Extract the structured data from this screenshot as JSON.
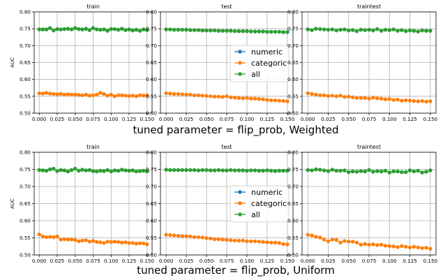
{
  "colors": {
    "numeric": "#1f77b4",
    "categoric": "#ff7f0e",
    "all": "#2ca02c",
    "grid": "#b0b0b0",
    "axis": "#000000"
  },
  "rows": [
    {
      "suptitle": "tuned parameter = flip_prob, Weighted"
    },
    {
      "suptitle": "tuned parameter = flip_prob, Uniform"
    }
  ],
  "chart_data": [
    {
      "type": "line",
      "title": "train",
      "xlabel": "",
      "ylabel": "AUC",
      "xlim": [
        -0.007,
        0.157
      ],
      "ylim": [
        0.5,
        0.8
      ],
      "xticks": [
        "0.000",
        "0.025",
        "0.050",
        "0.075",
        "0.100",
        "0.125",
        "0.150"
      ],
      "yticks": [
        "0.50",
        "0.55",
        "0.60",
        "0.65",
        "0.70",
        "0.75",
        "0.80"
      ],
      "grid": true,
      "legend": null,
      "x": [
        0.0,
        0.005,
        0.01,
        0.015,
        0.02,
        0.025,
        0.03,
        0.035,
        0.04,
        0.045,
        0.05,
        0.055,
        0.06,
        0.065,
        0.07,
        0.075,
        0.08,
        0.085,
        0.09,
        0.095,
        0.1,
        0.105,
        0.11,
        0.115,
        0.12,
        0.125,
        0.13,
        0.135,
        0.14,
        0.145,
        0.15
      ],
      "series": [
        {
          "name": "numeric",
          "values": [
            0.748,
            0.748,
            0.748,
            0.752,
            0.745,
            0.749,
            0.748,
            0.749,
            0.75,
            0.748,
            0.752,
            0.749,
            0.748,
            0.75,
            0.746,
            0.752,
            0.748,
            0.747,
            0.748,
            0.744,
            0.749,
            0.749,
            0.747,
            0.75,
            0.746,
            0.748,
            0.745,
            0.747,
            0.744,
            0.748,
            0.746
          ]
        },
        {
          "name": "categoric",
          "values": [
            0.559,
            0.558,
            0.56,
            0.558,
            0.557,
            0.556,
            0.557,
            0.555,
            0.556,
            0.555,
            0.555,
            0.554,
            0.553,
            0.555,
            0.552,
            0.553,
            0.555,
            0.56,
            0.557,
            0.552,
            0.555,
            0.55,
            0.553,
            0.553,
            0.552,
            0.551,
            0.552,
            0.55,
            0.553,
            0.552,
            0.553
          ]
        },
        {
          "name": "all",
          "values": [
            0.748,
            0.748,
            0.748,
            0.752,
            0.745,
            0.749,
            0.748,
            0.749,
            0.75,
            0.748,
            0.752,
            0.749,
            0.748,
            0.75,
            0.746,
            0.752,
            0.748,
            0.747,
            0.748,
            0.744,
            0.749,
            0.749,
            0.747,
            0.75,
            0.746,
            0.748,
            0.745,
            0.747,
            0.744,
            0.748,
            0.746
          ]
        }
      ]
    },
    {
      "type": "line",
      "title": "test",
      "xlabel": "",
      "ylabel": "",
      "xlim": [
        -0.007,
        0.157
      ],
      "ylim": [
        0.5,
        0.8
      ],
      "xticks": [
        "0.000",
        "0.025",
        "0.050",
        "0.075",
        "0.100",
        "0.125",
        "0.150"
      ],
      "yticks": [
        "0.50",
        "0.55",
        "0.60",
        "0.65",
        "0.70",
        "0.75",
        "0.80"
      ],
      "grid": true,
      "legend": "center-right",
      "x": [
        0.0,
        0.005,
        0.01,
        0.015,
        0.02,
        0.025,
        0.03,
        0.035,
        0.04,
        0.045,
        0.05,
        0.055,
        0.06,
        0.065,
        0.07,
        0.075,
        0.08,
        0.085,
        0.09,
        0.095,
        0.1,
        0.105,
        0.11,
        0.115,
        0.12,
        0.125,
        0.13,
        0.135,
        0.14,
        0.145,
        0.15
      ],
      "series": [
        {
          "name": "numeric",
          "values": [
            0.748,
            0.748,
            0.747,
            0.747,
            0.747,
            0.747,
            0.746,
            0.746,
            0.746,
            0.745,
            0.745,
            0.745,
            0.745,
            0.744,
            0.744,
            0.744,
            0.744,
            0.743,
            0.743,
            0.743,
            0.743,
            0.742,
            0.742,
            0.742,
            0.742,
            0.741,
            0.741,
            0.741,
            0.741,
            0.74,
            0.74
          ]
        },
        {
          "name": "categoric",
          "values": [
            0.559,
            0.558,
            0.557,
            0.557,
            0.556,
            0.555,
            0.555,
            0.553,
            0.553,
            0.552,
            0.551,
            0.55,
            0.549,
            0.549,
            0.548,
            0.55,
            0.547,
            0.546,
            0.545,
            0.544,
            0.545,
            0.543,
            0.543,
            0.542,
            0.541,
            0.539,
            0.538,
            0.538,
            0.537,
            0.536,
            0.535
          ]
        },
        {
          "name": "all",
          "values": [
            0.748,
            0.748,
            0.747,
            0.747,
            0.747,
            0.747,
            0.746,
            0.746,
            0.746,
            0.745,
            0.745,
            0.745,
            0.745,
            0.744,
            0.744,
            0.744,
            0.744,
            0.743,
            0.743,
            0.743,
            0.743,
            0.742,
            0.742,
            0.742,
            0.742,
            0.741,
            0.741,
            0.741,
            0.741,
            0.74,
            0.74
          ]
        }
      ]
    },
    {
      "type": "line",
      "title": "traintest",
      "xlabel": "",
      "ylabel": "",
      "xlim": [
        -0.007,
        0.157
      ],
      "ylim": [
        0.5,
        0.8
      ],
      "xticks": [
        "0.000",
        "0.025",
        "0.050",
        "0.075",
        "0.100",
        "0.125",
        "0.150"
      ],
      "yticks": [
        "0.50",
        "0.55",
        "0.60",
        "0.65",
        "0.70",
        "0.75",
        "0.80"
      ],
      "grid": true,
      "legend": null,
      "x": [
        0.0,
        0.005,
        0.01,
        0.015,
        0.02,
        0.025,
        0.03,
        0.035,
        0.04,
        0.045,
        0.05,
        0.055,
        0.06,
        0.065,
        0.07,
        0.075,
        0.08,
        0.085,
        0.09,
        0.095,
        0.1,
        0.105,
        0.11,
        0.115,
        0.12,
        0.125,
        0.13,
        0.135,
        0.14,
        0.145,
        0.15
      ],
      "series": [
        {
          "name": "numeric",
          "values": [
            0.748,
            0.746,
            0.75,
            0.749,
            0.748,
            0.747,
            0.748,
            0.745,
            0.747,
            0.748,
            0.745,
            0.746,
            0.743,
            0.747,
            0.746,
            0.747,
            0.745,
            0.749,
            0.744,
            0.747,
            0.746,
            0.748,
            0.744,
            0.746,
            0.743,
            0.745,
            0.744,
            0.742,
            0.745,
            0.744,
            0.744
          ]
        },
        {
          "name": "categoric",
          "values": [
            0.559,
            0.557,
            0.555,
            0.553,
            0.553,
            0.551,
            0.552,
            0.55,
            0.552,
            0.548,
            0.549,
            0.547,
            0.545,
            0.545,
            0.545,
            0.543,
            0.546,
            0.544,
            0.543,
            0.541,
            0.542,
            0.539,
            0.54,
            0.537,
            0.538,
            0.537,
            0.536,
            0.535,
            0.536,
            0.534,
            0.535
          ]
        },
        {
          "name": "all",
          "values": [
            0.748,
            0.746,
            0.75,
            0.749,
            0.748,
            0.747,
            0.748,
            0.745,
            0.747,
            0.748,
            0.745,
            0.746,
            0.743,
            0.747,
            0.746,
            0.747,
            0.745,
            0.749,
            0.744,
            0.747,
            0.746,
            0.748,
            0.744,
            0.746,
            0.743,
            0.745,
            0.744,
            0.742,
            0.745,
            0.744,
            0.744
          ]
        }
      ]
    },
    {
      "type": "line",
      "title": "train",
      "xlabel": "",
      "ylabel": "AUC",
      "xlim": [
        -0.007,
        0.157
      ],
      "ylim": [
        0.5,
        0.8
      ],
      "xticks": [
        "0.000",
        "0.025",
        "0.050",
        "0.075",
        "0.100",
        "0.125",
        "0.150"
      ],
      "yticks": [
        "0.50",
        "0.55",
        "0.60",
        "0.65",
        "0.70",
        "0.75",
        "0.80"
      ],
      "grid": true,
      "legend": null,
      "x": [
        0.0,
        0.005,
        0.01,
        0.015,
        0.02,
        0.025,
        0.03,
        0.035,
        0.04,
        0.045,
        0.05,
        0.055,
        0.06,
        0.065,
        0.07,
        0.075,
        0.08,
        0.085,
        0.09,
        0.095,
        0.1,
        0.105,
        0.11,
        0.115,
        0.12,
        0.125,
        0.13,
        0.135,
        0.14,
        0.145,
        0.15
      ],
      "series": [
        {
          "name": "numeric",
          "values": [
            0.748,
            0.747,
            0.746,
            0.75,
            0.752,
            0.745,
            0.748,
            0.747,
            0.744,
            0.748,
            0.752,
            0.746,
            0.749,
            0.747,
            0.748,
            0.745,
            0.744,
            0.746,
            0.745,
            0.748,
            0.744,
            0.747,
            0.746,
            0.749,
            0.747,
            0.746,
            0.747,
            0.744,
            0.745,
            0.746,
            0.744
          ]
        },
        {
          "name": "categoric",
          "values": [
            0.56,
            0.554,
            0.552,
            0.553,
            0.552,
            0.554,
            0.545,
            0.546,
            0.545,
            0.545,
            0.544,
            0.54,
            0.542,
            0.543,
            0.539,
            0.541,
            0.538,
            0.537,
            0.535,
            0.539,
            0.538,
            0.539,
            0.538,
            0.536,
            0.537,
            0.535,
            0.535,
            0.533,
            0.534,
            0.534,
            0.531
          ]
        },
        {
          "name": "all",
          "values": [
            0.748,
            0.747,
            0.746,
            0.75,
            0.752,
            0.745,
            0.748,
            0.747,
            0.744,
            0.748,
            0.752,
            0.746,
            0.749,
            0.747,
            0.748,
            0.745,
            0.744,
            0.746,
            0.745,
            0.748,
            0.744,
            0.747,
            0.746,
            0.749,
            0.747,
            0.746,
            0.747,
            0.744,
            0.745,
            0.746,
            0.744
          ]
        }
      ]
    },
    {
      "type": "line",
      "title": "test",
      "xlabel": "",
      "ylabel": "",
      "xlim": [
        -0.007,
        0.157
      ],
      "ylim": [
        0.5,
        0.8
      ],
      "xticks": [
        "0.000",
        "0.025",
        "0.050",
        "0.075",
        "0.100",
        "0.125",
        "0.150"
      ],
      "yticks": [
        "0.50",
        "0.55",
        "0.60",
        "0.65",
        "0.70",
        "0.75",
        "0.80"
      ],
      "grid": true,
      "legend": "center-right",
      "x": [
        0.0,
        0.005,
        0.01,
        0.015,
        0.02,
        0.025,
        0.03,
        0.035,
        0.04,
        0.045,
        0.05,
        0.055,
        0.06,
        0.065,
        0.07,
        0.075,
        0.08,
        0.085,
        0.09,
        0.095,
        0.1,
        0.105,
        0.11,
        0.115,
        0.12,
        0.125,
        0.13,
        0.135,
        0.14,
        0.145,
        0.15
      ],
      "series": [
        {
          "name": "numeric",
          "values": [
            0.749,
            0.748,
            0.748,
            0.748,
            0.748,
            0.748,
            0.748,
            0.748,
            0.747,
            0.748,
            0.748,
            0.747,
            0.747,
            0.748,
            0.747,
            0.747,
            0.748,
            0.747,
            0.747,
            0.747,
            0.746,
            0.747,
            0.747,
            0.746,
            0.746,
            0.747,
            0.746,
            0.745,
            0.746,
            0.746,
            0.746
          ]
        },
        {
          "name": "categoric",
          "values": [
            0.559,
            0.558,
            0.557,
            0.556,
            0.555,
            0.555,
            0.554,
            0.552,
            0.552,
            0.551,
            0.549,
            0.548,
            0.546,
            0.546,
            0.545,
            0.544,
            0.543,
            0.542,
            0.542,
            0.542,
            0.54,
            0.54,
            0.54,
            0.539,
            0.538,
            0.537,
            0.536,
            0.536,
            0.535,
            0.532,
            0.531
          ]
        },
        {
          "name": "all",
          "values": [
            0.749,
            0.748,
            0.748,
            0.748,
            0.748,
            0.748,
            0.748,
            0.748,
            0.747,
            0.748,
            0.748,
            0.747,
            0.747,
            0.748,
            0.747,
            0.747,
            0.748,
            0.747,
            0.747,
            0.747,
            0.746,
            0.747,
            0.747,
            0.746,
            0.746,
            0.747,
            0.746,
            0.745,
            0.746,
            0.746,
            0.746
          ]
        }
      ]
    },
    {
      "type": "line",
      "title": "traintest",
      "xlabel": "",
      "ylabel": "",
      "xlim": [
        -0.007,
        0.157
      ],
      "ylim": [
        0.5,
        0.8
      ],
      "xticks": [
        "0.000",
        "0.025",
        "0.050",
        "0.075",
        "0.100",
        "0.125",
        "0.150"
      ],
      "yticks": [
        "0.50",
        "0.55",
        "0.60",
        "0.65",
        "0.70",
        "0.75",
        "0.80"
      ],
      "grid": true,
      "legend": null,
      "x": [
        0.0,
        0.005,
        0.01,
        0.015,
        0.02,
        0.025,
        0.03,
        0.035,
        0.04,
        0.045,
        0.05,
        0.055,
        0.06,
        0.065,
        0.07,
        0.075,
        0.08,
        0.085,
        0.09,
        0.095,
        0.1,
        0.105,
        0.11,
        0.115,
        0.12,
        0.125,
        0.13,
        0.135,
        0.14,
        0.145,
        0.15
      ],
      "series": [
        {
          "name": "numeric",
          "values": [
            0.748,
            0.747,
            0.75,
            0.749,
            0.747,
            0.745,
            0.749,
            0.746,
            0.746,
            0.747,
            0.742,
            0.744,
            0.743,
            0.745,
            0.744,
            0.748,
            0.743,
            0.745,
            0.744,
            0.746,
            0.741,
            0.744,
            0.744,
            0.742,
            0.742,
            0.747,
            0.744,
            0.746,
            0.741,
            0.743,
            0.747
          ]
        },
        {
          "name": "categoric",
          "values": [
            0.559,
            0.557,
            0.553,
            0.551,
            0.545,
            0.54,
            0.545,
            0.544,
            0.536,
            0.541,
            0.539,
            0.539,
            0.536,
            0.53,
            0.532,
            0.53,
            0.531,
            0.529,
            0.53,
            0.527,
            0.526,
            0.525,
            0.523,
            0.526,
            0.524,
            0.522,
            0.524,
            0.522,
            0.52,
            0.521,
            0.518
          ]
        },
        {
          "name": "all",
          "values": [
            0.748,
            0.747,
            0.75,
            0.749,
            0.747,
            0.745,
            0.749,
            0.746,
            0.746,
            0.747,
            0.742,
            0.744,
            0.743,
            0.745,
            0.744,
            0.748,
            0.743,
            0.745,
            0.744,
            0.746,
            0.741,
            0.744,
            0.744,
            0.742,
            0.742,
            0.747,
            0.744,
            0.746,
            0.741,
            0.743,
            0.747
          ]
        }
      ]
    }
  ]
}
